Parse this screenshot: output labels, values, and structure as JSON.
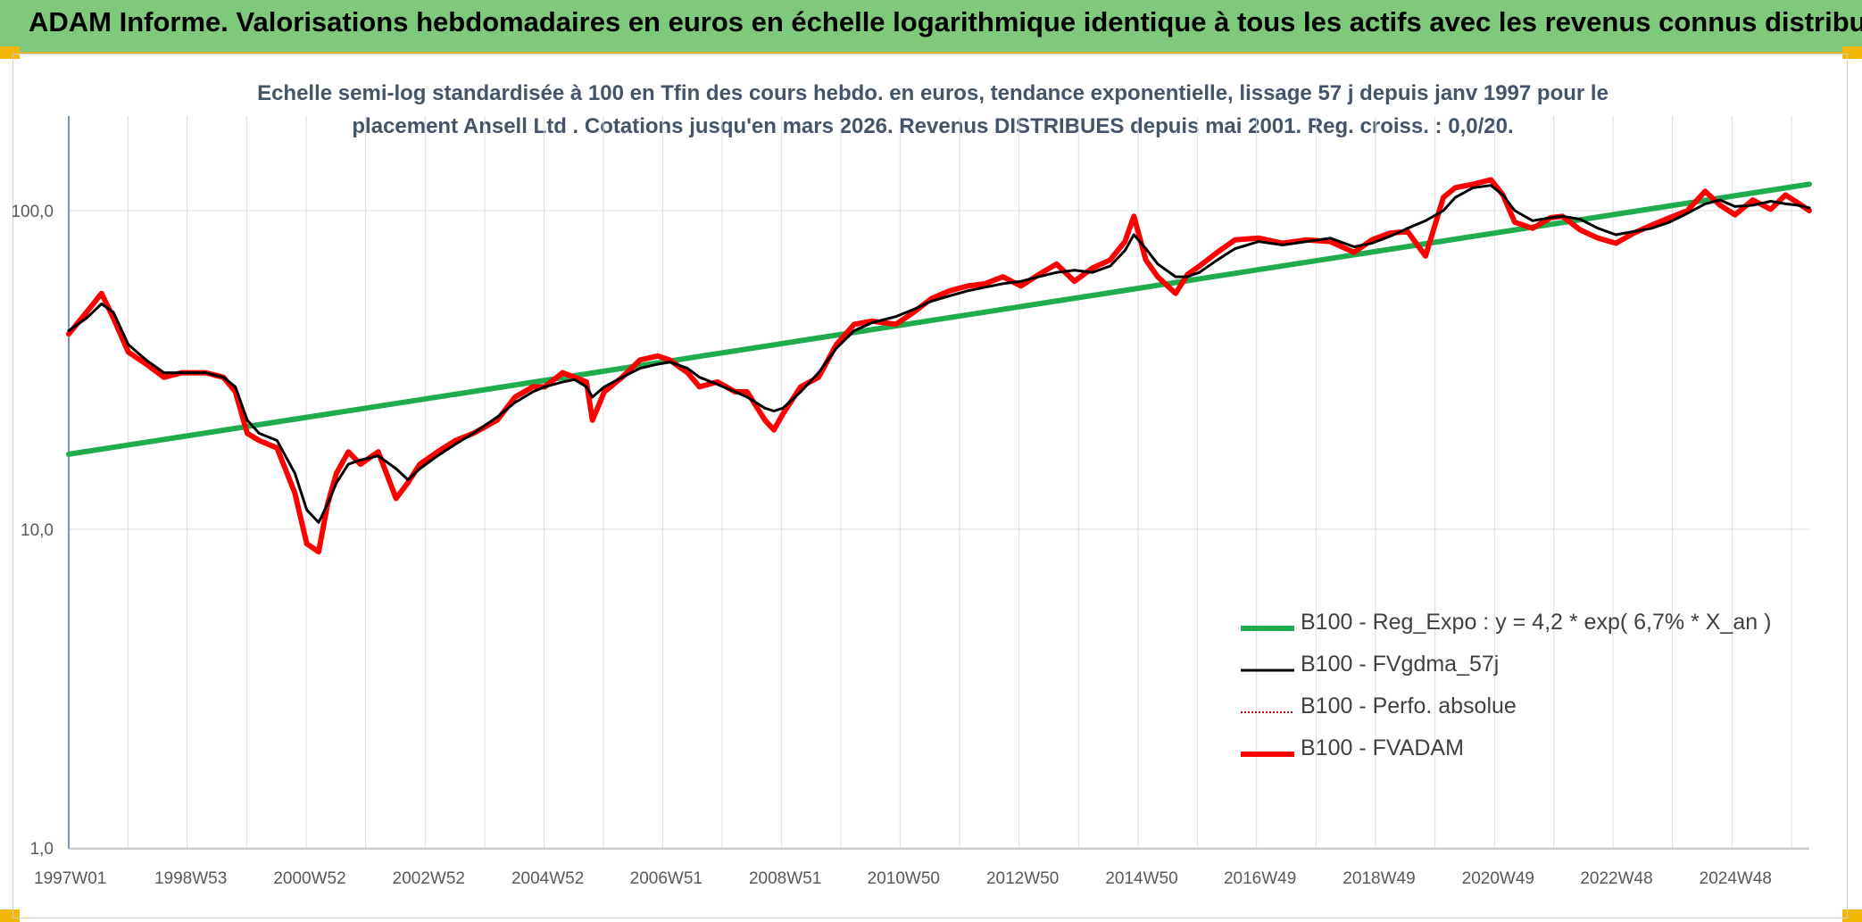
{
  "header": {
    "title": "ADAM Informe. Valorisations hebdomadaires en euros en échelle logarithmique identique à tous les actifs avec les revenus connus distribués"
  },
  "chart_data": {
    "type": "line",
    "title": "Echelle semi-log standardisée à 100 en Tfin des cours hebdo. en euros, tendance exponentielle, lissage 57 j depuis janv 1997 pour le placement Ansell Ltd . Cotations jusqu'en mars 2026. Revenus DISTRIBUES depuis mai 2001. Reg. croiss. : 0,0/20.",
    "y_scale": "log",
    "ylim": [
      1,
      200
    ],
    "y_ticks": [
      "1,0",
      "10,0",
      "100,0"
    ],
    "y_tick_values": [
      1,
      10,
      100
    ],
    "xlim": [
      1997.0,
      2026.25
    ],
    "x_ticks": [
      "1997W01",
      "1998W53",
      "2000W52",
      "2002W52",
      "2004W52",
      "2006W51",
      "2008W51",
      "2010W50",
      "2012W50",
      "2014W50",
      "2016W49",
      "2018W49",
      "2020W49",
      "2022W48",
      "2024W48"
    ],
    "x_tick_values": [
      1997.0,
      1998.99,
      2000.99,
      2002.99,
      2004.99,
      2006.98,
      2008.98,
      2010.97,
      2012.97,
      2014.97,
      2016.96,
      2018.96,
      2020.96,
      2022.95,
      2024.95
    ],
    "grid": true,
    "legend_position": "bottom-right",
    "series": [
      {
        "name": "B100 - Reg_Expo : y = 4,2 * exp( 6,7% *  X_an )",
        "color": "#1fac4f",
        "style": "thick-solid",
        "x": [
          1997.0,
          2026.25
        ],
        "values": [
          17.2,
          121
        ]
      },
      {
        "name": "B100 - FVgdma_57j",
        "color": "#000000",
        "style": "solid",
        "x": [
          1997.0,
          1997.3,
          1997.55,
          1997.75,
          1998.0,
          1998.3,
          1998.6,
          1998.9,
          1999.3,
          1999.6,
          1999.8,
          2000.0,
          2000.2,
          2000.5,
          2000.8,
          2001.0,
          2001.2,
          2001.35,
          2001.5,
          2001.7,
          2001.9,
          2002.2,
          2002.5,
          2002.7,
          2002.9,
          2003.2,
          2003.5,
          2003.8,
          2004.2,
          2004.5,
          2004.8,
          2005.0,
          2005.3,
          2005.5,
          2005.7,
          2005.8,
          2006.0,
          2006.3,
          2006.6,
          2006.9,
          2007.1,
          2007.4,
          2007.6,
          2007.9,
          2008.2,
          2008.4,
          2008.7,
          2008.85,
          2009.0,
          2009.3,
          2009.6,
          2009.9,
          2010.2,
          2010.5,
          2010.9,
          2011.2,
          2011.5,
          2011.8,
          2012.1,
          2012.4,
          2012.7,
          2013.0,
          2013.3,
          2013.6,
          2013.9,
          2014.2,
          2014.5,
          2014.75,
          2014.9,
          2015.1,
          2015.3,
          2015.6,
          2015.8,
          2016.0,
          2016.3,
          2016.6,
          2017.0,
          2017.4,
          2017.8,
          2018.2,
          2018.6,
          2018.9,
          2019.2,
          2019.5,
          2019.8,
          2020.1,
          2020.3,
          2020.6,
          2020.9,
          2021.1,
          2021.3,
          2021.6,
          2021.9,
          2022.1,
          2022.4,
          2022.7,
          2023.0,
          2023.3,
          2023.6,
          2023.9,
          2024.2,
          2024.5,
          2024.75,
          2025.0,
          2025.3,
          2025.6,
          2025.85,
          2026.05,
          2026.25
        ],
        "values": [
          42,
          46,
          51,
          48,
          38,
          34,
          31,
          31,
          31,
          30,
          28,
          22,
          20,
          19,
          15,
          11.5,
          10.5,
          12,
          14,
          16,
          16.5,
          17,
          15.5,
          14.3,
          15.5,
          17,
          18.5,
          20,
          22.5,
          25,
          27,
          28,
          29,
          29.5,
          28,
          26,
          28,
          30,
          32,
          33,
          33.5,
          32,
          30,
          28.5,
          27,
          26,
          24,
          23.5,
          24,
          27,
          31,
          37,
          42,
          44.5,
          46.5,
          49,
          52,
          54,
          56,
          57.5,
          59,
          60,
          62,
          64,
          65,
          64,
          67,
          75,
          84,
          76,
          68,
          62,
          62,
          64,
          70,
          76,
          80,
          78,
          80,
          82,
          77,
          79,
          83,
          88,
          93,
          100,
          110,
          118,
          120,
          112,
          100,
          93,
          95,
          96,
          94,
          88,
          84,
          86,
          88,
          92,
          98,
          105,
          108,
          103,
          104,
          107,
          105,
          104,
          102
        ]
      },
      {
        "name": "B100 - Perfo. absolue",
        "color": "#c00000",
        "style": "dotted",
        "x": [],
        "values": []
      },
      {
        "name": "B100 - FVADAM",
        "color": "#ff0000",
        "style": "thick-solid",
        "x": [
          1997.0,
          1997.3,
          1997.55,
          1997.75,
          1998.0,
          1998.3,
          1998.6,
          1998.9,
          1999.3,
          1999.6,
          1999.8,
          2000.0,
          2000.2,
          2000.5,
          2000.8,
          2001.0,
          2001.2,
          2001.35,
          2001.5,
          2001.7,
          2001.9,
          2002.2,
          2002.5,
          2002.7,
          2002.9,
          2003.2,
          2003.5,
          2003.8,
          2004.2,
          2004.5,
          2004.8,
          2005.0,
          2005.3,
          2005.5,
          2005.7,
          2005.8,
          2006.0,
          2006.3,
          2006.6,
          2006.9,
          2007.1,
          2007.4,
          2007.6,
          2007.9,
          2008.2,
          2008.4,
          2008.7,
          2008.85,
          2009.0,
          2009.3,
          2009.6,
          2009.9,
          2010.2,
          2010.5,
          2010.9,
          2011.2,
          2011.5,
          2011.8,
          2012.1,
          2012.4,
          2012.7,
          2013.0,
          2013.3,
          2013.6,
          2013.9,
          2014.2,
          2014.5,
          2014.75,
          2014.9,
          2015.1,
          2015.3,
          2015.6,
          2015.8,
          2016.0,
          2016.3,
          2016.6,
          2017.0,
          2017.4,
          2017.8,
          2018.2,
          2018.6,
          2018.9,
          2019.2,
          2019.5,
          2019.8,
          2020.1,
          2020.3,
          2020.6,
          2020.9,
          2021.1,
          2021.3,
          2021.6,
          2021.9,
          2022.1,
          2022.4,
          2022.7,
          2023.0,
          2023.3,
          2023.6,
          2023.9,
          2024.2,
          2024.5,
          2024.75,
          2025.0,
          2025.3,
          2025.6,
          2025.85,
          2026.05,
          2026.25
        ],
        "values": [
          41,
          48,
          55,
          46,
          36,
          33,
          30,
          31,
          31,
          30,
          27,
          20,
          19,
          18,
          13,
          9,
          8.5,
          12,
          15,
          17.5,
          16,
          17.5,
          12.5,
          14,
          16,
          17.5,
          19,
          20,
          22,
          26,
          28,
          28,
          31,
          30,
          29,
          22,
          27,
          30,
          34,
          35,
          34,
          31,
          28,
          29,
          27,
          27,
          22,
          20.5,
          23,
          28,
          30,
          38,
          44,
          45,
          44,
          48,
          53,
          56,
          58,
          59,
          62,
          58,
          63,
          68,
          60,
          66,
          70,
          80,
          96,
          70,
          62,
          55,
          63,
          67,
          74,
          81,
          82,
          79,
          81,
          80,
          74,
          81,
          85,
          86,
          72,
          110,
          118,
          121,
          125,
          112,
          92,
          88,
          95,
          96,
          87,
          82,
          79,
          85,
          90,
          95,
          100,
          115,
          104,
          97,
          108,
          101,
          112,
          106,
          100
        ]
      }
    ]
  }
}
